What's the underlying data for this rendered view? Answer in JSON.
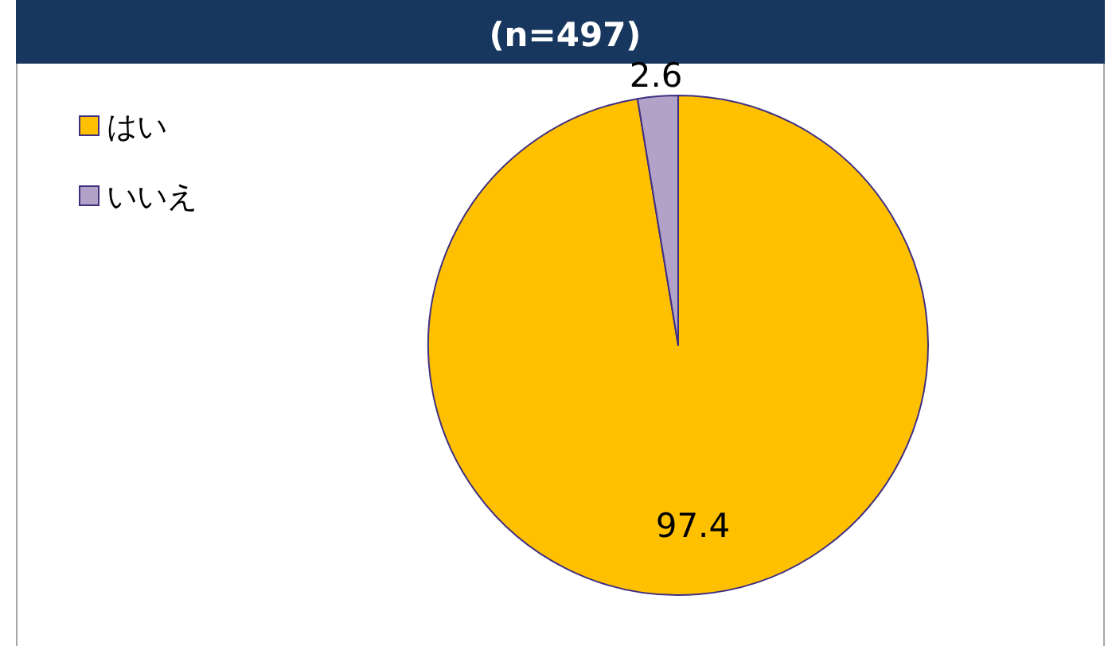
{
  "chart_data": {
    "type": "pie",
    "title": "(n=497)",
    "categories": [
      "はい",
      "いいえ"
    ],
    "values": [
      97.4,
      2.6
    ],
    "colors": [
      "#ffc000",
      "#b3a2c7"
    ],
    "data_labels": true,
    "legend": "top left"
  }
}
